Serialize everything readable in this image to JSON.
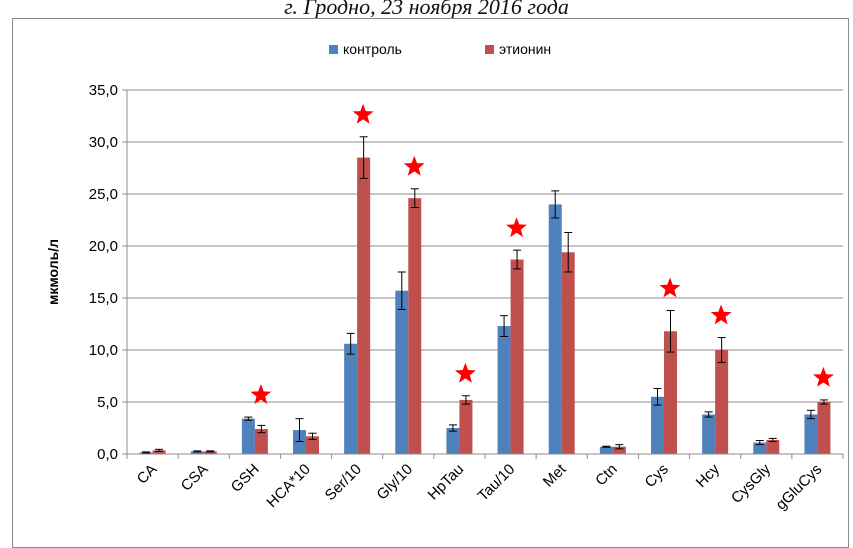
{
  "caption": "г. Гродно, 23 ноября 2016 года",
  "chart_data": {
    "type": "bar",
    "title": "",
    "xlabel": "",
    "ylabel": "мкмоль/л",
    "ylim": [
      0,
      35
    ],
    "yticks": [
      "0,0",
      "5,0",
      "10,0",
      "15,0",
      "20,0",
      "25,0",
      "30,0",
      "35,0"
    ],
    "grid": true,
    "legend_position": "top-center",
    "categories": [
      "CA",
      "CSA",
      "GSH",
      "HCA*10",
      "Ser/10",
      "Gly/10",
      "HpTau",
      "Tau/10",
      "Met",
      "Ctn",
      "Cys",
      "Hcy",
      "CysGly",
      "gGluCys"
    ],
    "series": [
      {
        "name": "контроль",
        "color": "#4f81bd",
        "values": [
          0.15,
          0.25,
          3.4,
          2.3,
          10.6,
          15.7,
          2.5,
          12.3,
          24.0,
          0.7,
          5.5,
          3.8,
          1.1,
          3.8
        ],
        "errors": [
          0.05,
          0.05,
          0.15,
          1.1,
          1.0,
          1.8,
          0.3,
          1.0,
          1.3,
          0.05,
          0.8,
          0.25,
          0.2,
          0.4
        ]
      },
      {
        "name": "этионин",
        "color": "#c0504d",
        "values": [
          0.35,
          0.25,
          2.4,
          1.7,
          28.5,
          24.6,
          5.2,
          18.7,
          19.4,
          0.7,
          11.8,
          10.0,
          1.35,
          5.0
        ],
        "errors": [
          0.1,
          0.05,
          0.35,
          0.3,
          2.0,
          0.9,
          0.4,
          0.9,
          1.9,
          0.2,
          2.0,
          1.2,
          0.15,
          0.2
        ]
      }
    ],
    "significance_marker_color": "#ff0000",
    "significant": [
      false,
      false,
      true,
      false,
      true,
      true,
      true,
      true,
      false,
      false,
      true,
      true,
      false,
      true
    ]
  }
}
